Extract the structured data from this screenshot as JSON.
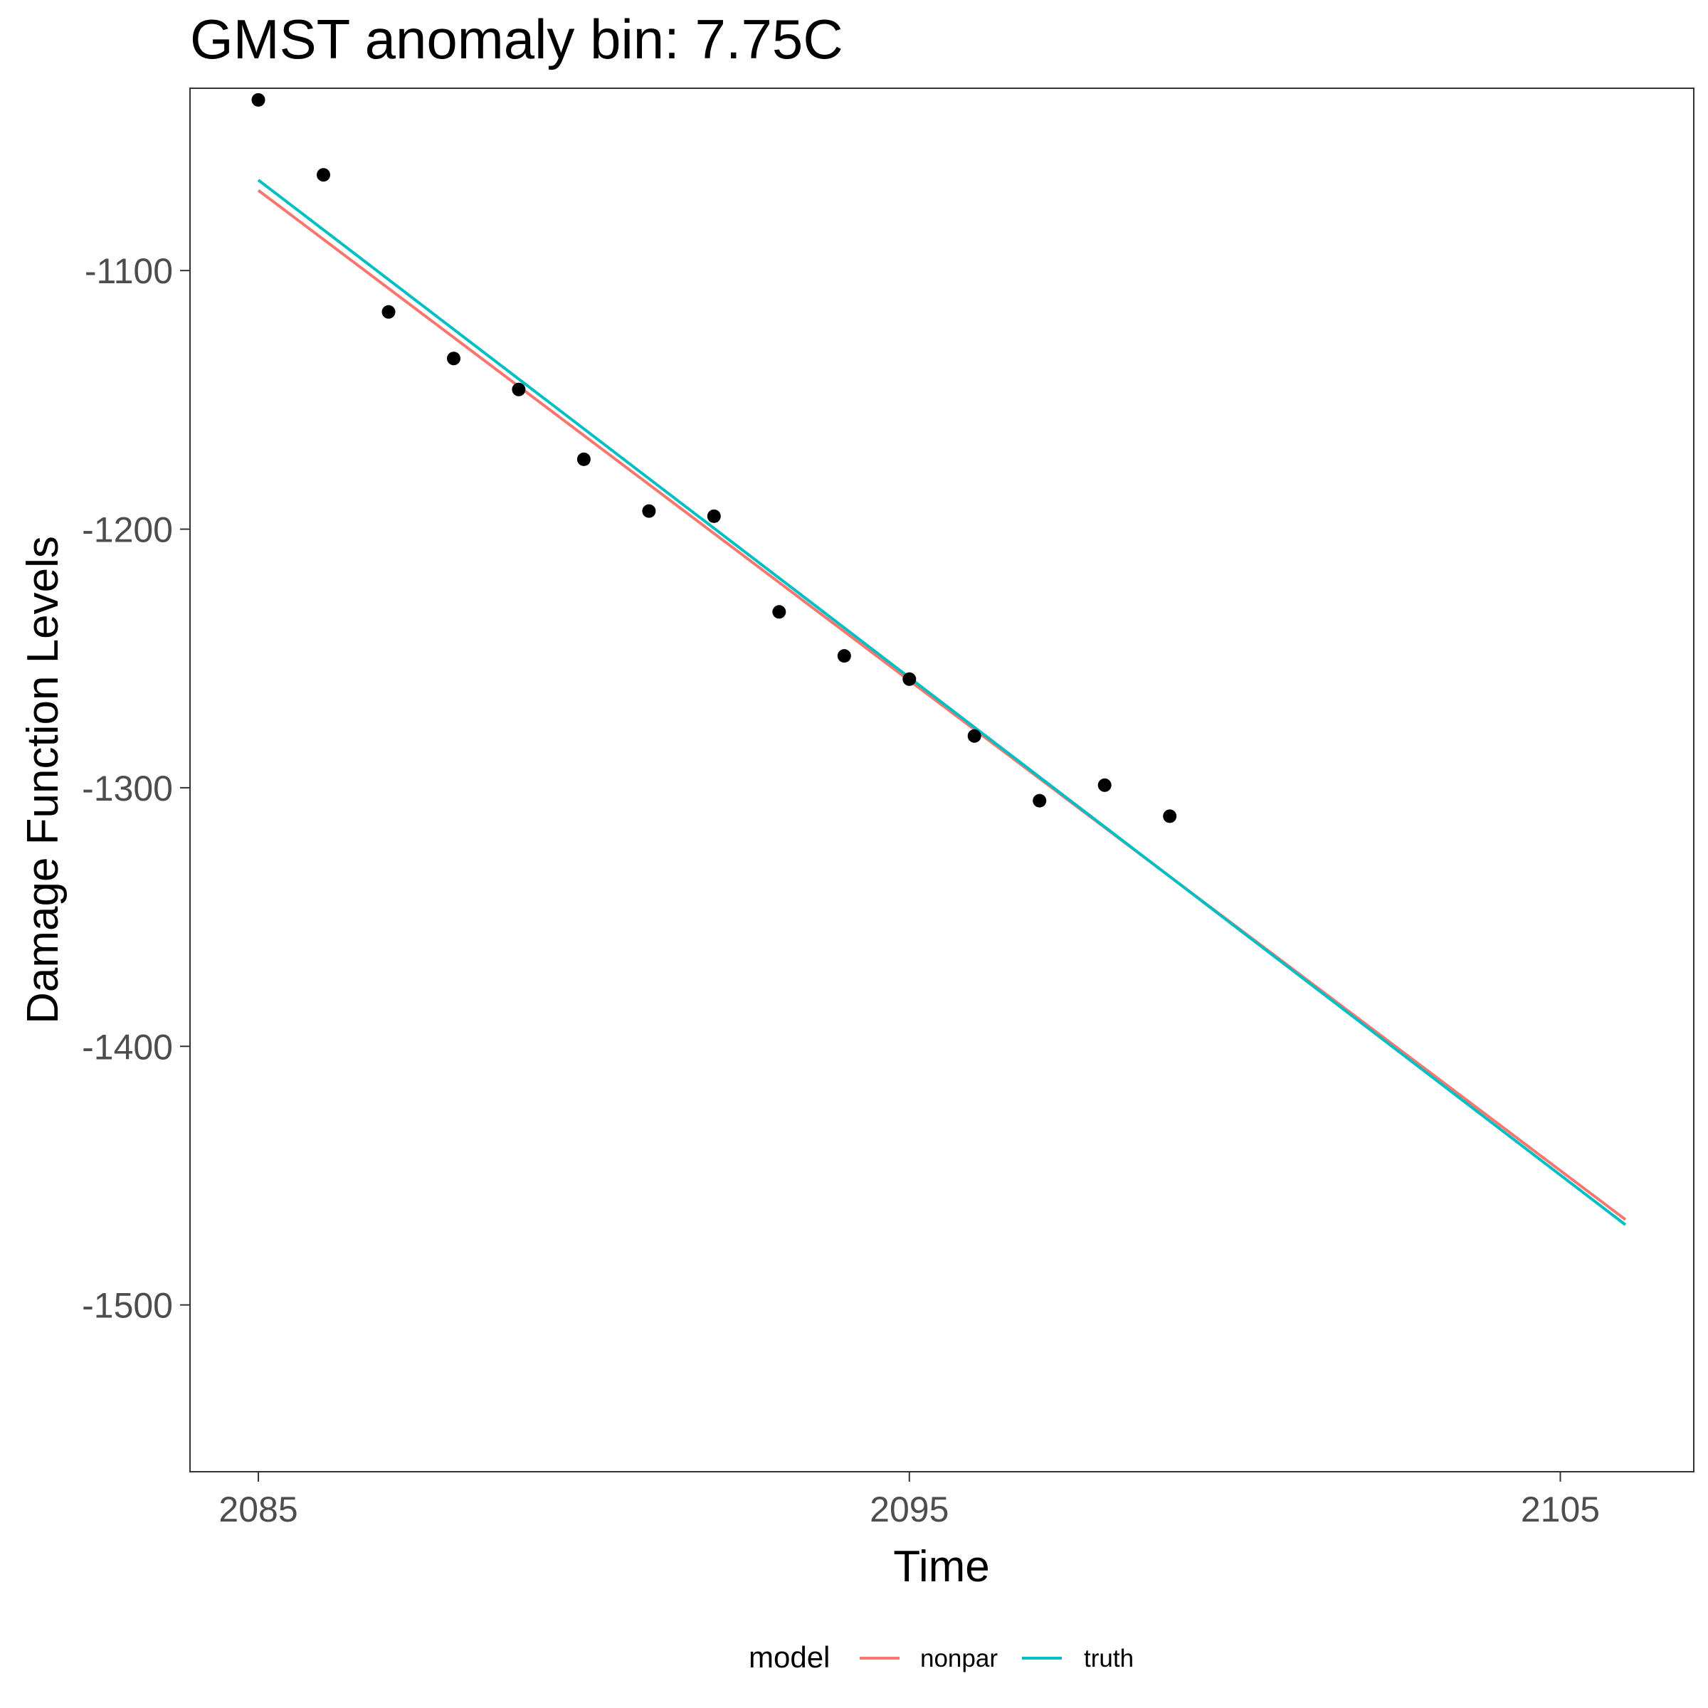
{
  "chart_data": {
    "type": "line",
    "title": "GMST anomaly bin: 7.75C",
    "xlabel": "Time",
    "ylabel": "Damage Function Levels",
    "xlim": [
      2083.95,
      2107.05
    ],
    "ylim": [
      -1564.5,
      -1029.5
    ],
    "x_ticks": [
      2085,
      2095,
      2105
    ],
    "x_tick_labels": [
      "2085",
      "2095",
      "2105"
    ],
    "y_ticks": [
      -1100,
      -1200,
      -1300,
      -1400,
      -1500
    ],
    "y_tick_labels": [
      "-1100",
      "-1200",
      "-1300",
      "-1400",
      "-1500"
    ],
    "grid": false,
    "legend": {
      "title": "model",
      "position": "bottom"
    },
    "points": {
      "x": [
        2085,
        2086,
        2087,
        2088,
        2089,
        2090,
        2091,
        2092,
        2093,
        2094,
        2095,
        2096,
        2097,
        2098,
        2099
      ],
      "y": [
        -1034,
        -1063,
        -1116,
        -1134,
        -1146,
        -1173,
        -1193,
        -1195,
        -1232,
        -1249,
        -1258,
        -1280,
        -1305,
        -1299,
        -1311
      ],
      "color": "#000000"
    },
    "series": [
      {
        "name": "nonpar",
        "color": "#F8766D",
        "x": [
          2085,
          2106
        ],
        "y": [
          -1069,
          -1467
        ]
      },
      {
        "name": "truth",
        "color": "#00BFC4",
        "x": [
          2085,
          2106
        ],
        "y": [
          -1065,
          -1469
        ]
      }
    ]
  }
}
